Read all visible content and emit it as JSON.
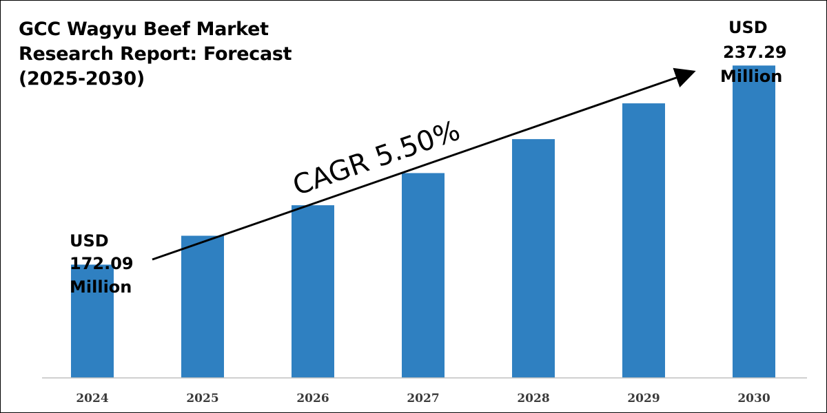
{
  "title_lines": [
    "GCC Wagyu Beef Market",
    "Research Report: Forecast",
    "(2025-2030)"
  ],
  "cagr_label": "CAGR 5.50%",
  "start_callout": [
    "USD",
    "172.09",
    "Million"
  ],
  "end_callout": [
    "USD",
    "237.29",
    "Million"
  ],
  "colors": {
    "bar": "#2f80c1",
    "axis": "#bfbfbf",
    "text": "#000000"
  },
  "chart_data": {
    "type": "bar",
    "title": "GCC Wagyu Beef Market Research Report: Forecast (2025-2030)",
    "categories": [
      "2024",
      "2025",
      "2026",
      "2027",
      "2028",
      "2029",
      "2030"
    ],
    "values": [
      172.09,
      181.55,
      191.54,
      202.07,
      213.19,
      224.91,
      237.29
    ],
    "unit": "USD Million",
    "ylim": [
      135,
      245
    ],
    "grid": false,
    "legend": "none",
    "annotations": [
      "CAGR 5.50%",
      "USD 172.09 Million",
      "USD 237.29 Million"
    ]
  }
}
